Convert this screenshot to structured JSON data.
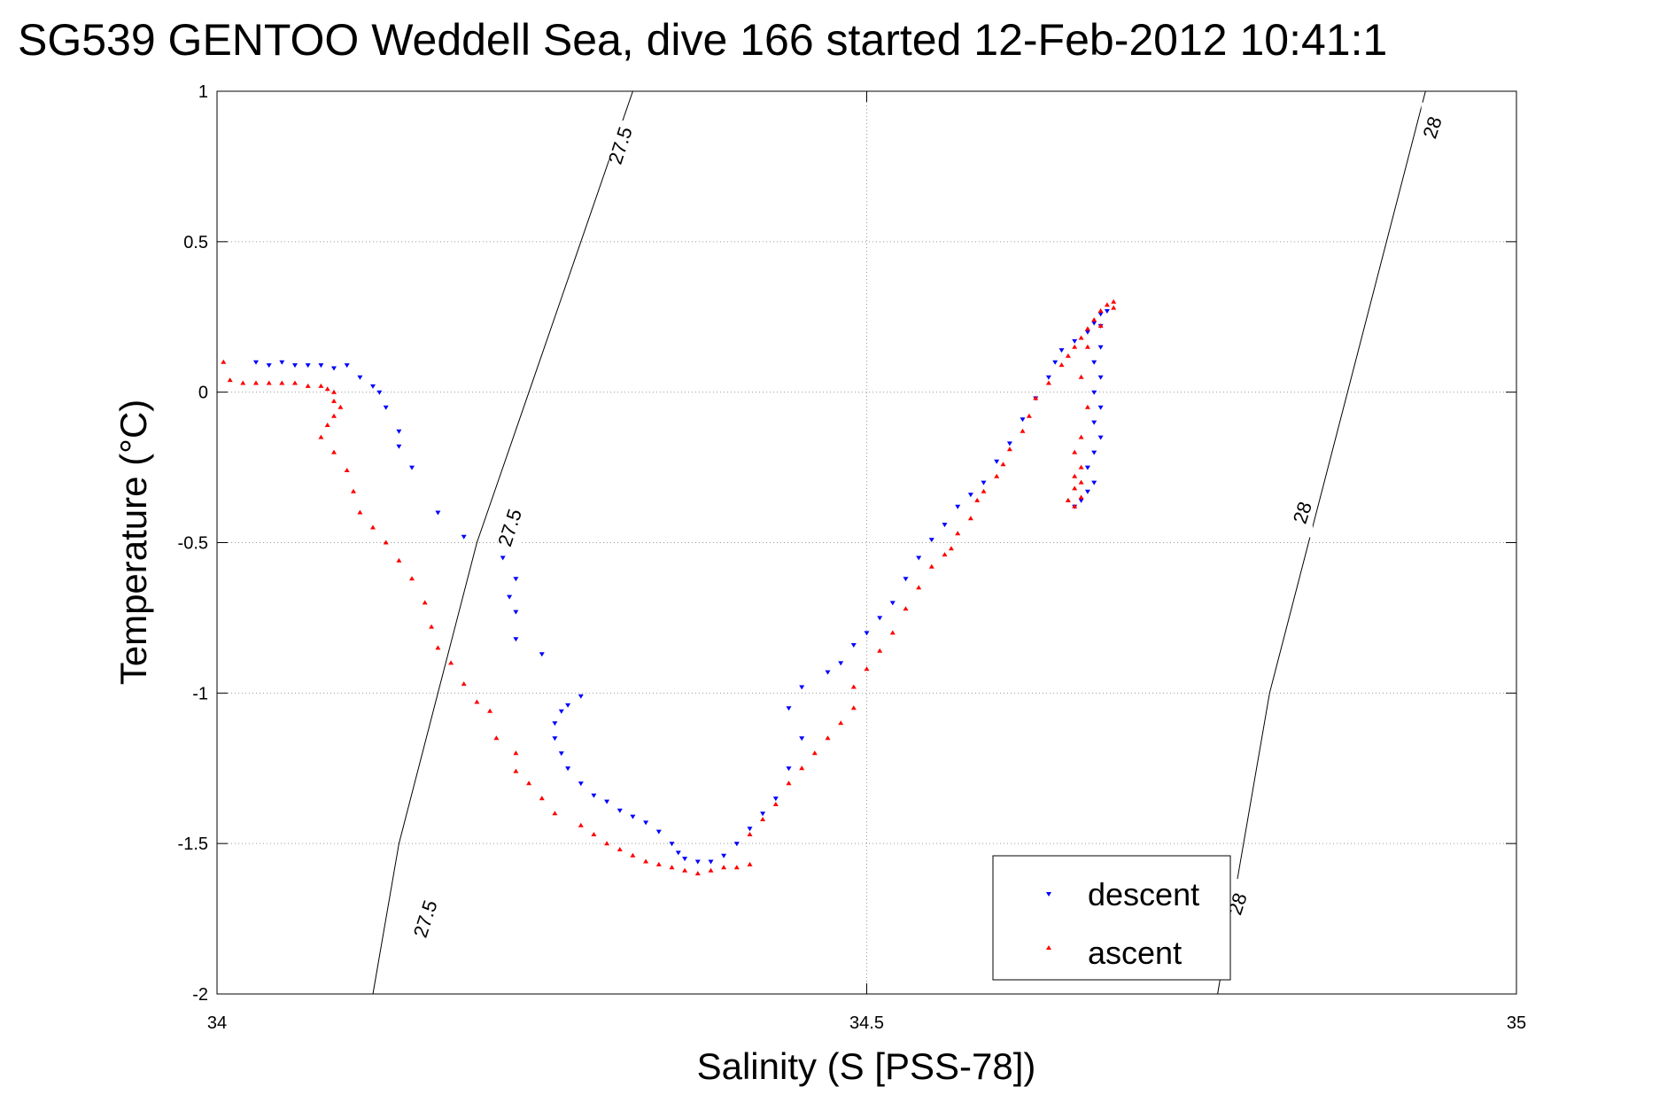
{
  "chart_data": {
    "type": "scatter",
    "title": "SG539 GENTOO Weddell Sea, dive 166 started 12-Feb-2012 10:41:1",
    "xlabel": "Salinity (S [PSS-78])",
    "ylabel": "Temperature (°C)",
    "xlim": [
      34,
      35
    ],
    "ylim": [
      -2,
      1
    ],
    "xticks": [
      34,
      34.5,
      35
    ],
    "yticks": [
      -2,
      -1.5,
      -1,
      -0.5,
      0,
      0.5,
      1
    ],
    "x_tick_labels": [
      "34",
      "34.5",
      "35"
    ],
    "y_tick_labels": [
      "-2",
      "-1.5",
      "-1",
      "-0.5",
      "0",
      "0.5",
      "1"
    ],
    "grid": true,
    "legend_position": "bottom-right",
    "series": [
      {
        "name": "descent",
        "color": "#0000ff",
        "marker": "triangle-down",
        "points": [
          [
            34.03,
            0.1
          ],
          [
            34.04,
            0.09
          ],
          [
            34.05,
            0.1
          ],
          [
            34.06,
            0.09
          ],
          [
            34.07,
            0.09
          ],
          [
            34.08,
            0.09
          ],
          [
            34.09,
            0.08
          ],
          [
            34.1,
            0.09
          ],
          [
            34.11,
            0.05
          ],
          [
            34.12,
            0.02
          ],
          [
            34.125,
            0.0
          ],
          [
            34.13,
            -0.05
          ],
          [
            34.14,
            -0.13
          ],
          [
            34.14,
            -0.18
          ],
          [
            34.15,
            -0.25
          ],
          [
            34.17,
            -0.4
          ],
          [
            34.19,
            -0.48
          ],
          [
            34.22,
            -0.55
          ],
          [
            34.23,
            -0.62
          ],
          [
            34.225,
            -0.68
          ],
          [
            34.23,
            -0.73
          ],
          [
            34.23,
            -0.82
          ],
          [
            34.25,
            -0.87
          ],
          [
            34.28,
            -1.01
          ],
          [
            34.27,
            -1.04
          ],
          [
            34.265,
            -1.06
          ],
          [
            34.26,
            -1.1
          ],
          [
            34.26,
            -1.15
          ],
          [
            34.265,
            -1.2
          ],
          [
            34.27,
            -1.25
          ],
          [
            34.28,
            -1.3
          ],
          [
            34.29,
            -1.34
          ],
          [
            34.3,
            -1.36
          ],
          [
            34.31,
            -1.39
          ],
          [
            34.32,
            -1.41
          ],
          [
            34.33,
            -1.43
          ],
          [
            34.34,
            -1.46
          ],
          [
            34.35,
            -1.5
          ],
          [
            34.355,
            -1.53
          ],
          [
            34.36,
            -1.55
          ],
          [
            34.37,
            -1.56
          ],
          [
            34.38,
            -1.56
          ],
          [
            34.39,
            -1.54
          ],
          [
            34.4,
            -1.5
          ],
          [
            34.41,
            -1.45
          ],
          [
            34.42,
            -1.4
          ],
          [
            34.43,
            -1.35
          ],
          [
            34.44,
            -1.25
          ],
          [
            34.45,
            -1.15
          ],
          [
            34.44,
            -1.05
          ],
          [
            34.45,
            -0.98
          ],
          [
            34.47,
            -0.93
          ],
          [
            34.48,
            -0.9
          ],
          [
            34.49,
            -0.84
          ],
          [
            34.5,
            -0.8
          ],
          [
            34.51,
            -0.75
          ],
          [
            34.52,
            -0.7
          ],
          [
            34.53,
            -0.62
          ],
          [
            34.54,
            -0.55
          ],
          [
            34.55,
            -0.49
          ],
          [
            34.56,
            -0.44
          ],
          [
            34.57,
            -0.38
          ],
          [
            34.58,
            -0.34
          ],
          [
            34.59,
            -0.3
          ],
          [
            34.6,
            -0.23
          ],
          [
            34.61,
            -0.17
          ],
          [
            34.62,
            -0.09
          ],
          [
            34.63,
            -0.02
          ],
          [
            34.64,
            0.05
          ],
          [
            34.645,
            0.1
          ],
          [
            34.65,
            0.14
          ],
          [
            34.66,
            0.17
          ],
          [
            34.67,
            0.2
          ],
          [
            34.675,
            0.23
          ],
          [
            34.68,
            0.26
          ],
          [
            34.685,
            0.27
          ],
          [
            34.68,
            0.22
          ],
          [
            34.68,
            0.15
          ],
          [
            34.675,
            0.1
          ],
          [
            34.68,
            0.05
          ],
          [
            34.675,
            0.0
          ],
          [
            34.68,
            -0.05
          ],
          [
            34.675,
            -0.1
          ],
          [
            34.68,
            -0.15
          ],
          [
            34.675,
            -0.2
          ],
          [
            34.67,
            -0.25
          ],
          [
            34.675,
            -0.3
          ],
          [
            34.67,
            -0.33
          ],
          [
            34.665,
            -0.36
          ],
          [
            34.66,
            -0.38
          ]
        ]
      },
      {
        "name": "ascent",
        "color": "#ff0000",
        "marker": "triangle-up",
        "points": [
          [
            34.005,
            0.1
          ],
          [
            34.01,
            0.04
          ],
          [
            34.02,
            0.03
          ],
          [
            34.03,
            0.03
          ],
          [
            34.04,
            0.03
          ],
          [
            34.05,
            0.03
          ],
          [
            34.06,
            0.03
          ],
          [
            34.07,
            0.02
          ],
          [
            34.08,
            0.02
          ],
          [
            34.085,
            0.01
          ],
          [
            34.09,
            0.0
          ],
          [
            34.09,
            -0.03
          ],
          [
            34.095,
            -0.05
          ],
          [
            34.09,
            -0.08
          ],
          [
            34.085,
            -0.11
          ],
          [
            34.08,
            -0.15
          ],
          [
            34.09,
            -0.2
          ],
          [
            34.1,
            -0.26
          ],
          [
            34.105,
            -0.33
          ],
          [
            34.11,
            -0.4
          ],
          [
            34.12,
            -0.45
          ],
          [
            34.13,
            -0.5
          ],
          [
            34.14,
            -0.56
          ],
          [
            34.15,
            -0.62
          ],
          [
            34.16,
            -0.7
          ],
          [
            34.165,
            -0.78
          ],
          [
            34.17,
            -0.85
          ],
          [
            34.18,
            -0.9
          ],
          [
            34.19,
            -0.97
          ],
          [
            34.2,
            -1.03
          ],
          [
            34.21,
            -1.06
          ],
          [
            34.215,
            -1.15
          ],
          [
            34.23,
            -1.2
          ],
          [
            34.23,
            -1.26
          ],
          [
            34.24,
            -1.3
          ],
          [
            34.25,
            -1.35
          ],
          [
            34.26,
            -1.4
          ],
          [
            34.28,
            -1.44
          ],
          [
            34.29,
            -1.47
          ],
          [
            34.3,
            -1.5
          ],
          [
            34.31,
            -1.52
          ],
          [
            34.32,
            -1.54
          ],
          [
            34.33,
            -1.56
          ],
          [
            34.34,
            -1.57
          ],
          [
            34.35,
            -1.58
          ],
          [
            34.36,
            -1.59
          ],
          [
            34.37,
            -1.6
          ],
          [
            34.38,
            -1.59
          ],
          [
            34.39,
            -1.58
          ],
          [
            34.4,
            -1.58
          ],
          [
            34.41,
            -1.57
          ],
          [
            34.41,
            -1.47
          ],
          [
            34.42,
            -1.42
          ],
          [
            34.43,
            -1.37
          ],
          [
            34.44,
            -1.3
          ],
          [
            34.45,
            -1.25
          ],
          [
            34.46,
            -1.2
          ],
          [
            34.47,
            -1.15
          ],
          [
            34.48,
            -1.1
          ],
          [
            34.49,
            -1.05
          ],
          [
            34.49,
            -0.98
          ],
          [
            34.5,
            -0.92
          ],
          [
            34.51,
            -0.86
          ],
          [
            34.52,
            -0.8
          ],
          [
            34.53,
            -0.72
          ],
          [
            34.54,
            -0.65
          ],
          [
            34.55,
            -0.58
          ],
          [
            34.56,
            -0.54
          ],
          [
            34.565,
            -0.52
          ],
          [
            34.57,
            -0.47
          ],
          [
            34.58,
            -0.42
          ],
          [
            34.585,
            -0.36
          ],
          [
            34.59,
            -0.33
          ],
          [
            34.6,
            -0.28
          ],
          [
            34.605,
            -0.24
          ],
          [
            34.61,
            -0.19
          ],
          [
            34.62,
            -0.13
          ],
          [
            34.625,
            -0.08
          ],
          [
            34.63,
            -0.02
          ],
          [
            34.64,
            0.03
          ],
          [
            34.65,
            0.09
          ],
          [
            34.655,
            0.12
          ],
          [
            34.66,
            0.15
          ],
          [
            34.665,
            0.18
          ],
          [
            34.67,
            0.21
          ],
          [
            34.675,
            0.24
          ],
          [
            34.68,
            0.27
          ],
          [
            34.685,
            0.29
          ],
          [
            34.69,
            0.3
          ],
          [
            34.69,
            0.28
          ],
          [
            34.68,
            0.22
          ],
          [
            34.67,
            0.15
          ],
          [
            34.665,
            0.05
          ],
          [
            34.67,
            -0.05
          ],
          [
            34.665,
            -0.15
          ],
          [
            34.66,
            -0.2
          ],
          [
            34.665,
            -0.25
          ],
          [
            34.66,
            -0.28
          ],
          [
            34.665,
            -0.3
          ],
          [
            34.66,
            -0.32
          ],
          [
            34.665,
            -0.35
          ],
          [
            34.655,
            -0.36
          ],
          [
            34.66,
            -0.38
          ]
        ]
      }
    ],
    "contours": [
      {
        "label": "27.5",
        "points": [
          [
            34.32,
            1.0
          ],
          [
            34.28,
            0.5
          ],
          [
            34.24,
            0.0
          ],
          [
            34.2,
            -0.5
          ],
          [
            34.17,
            -1.0
          ],
          [
            34.14,
            -1.5
          ],
          [
            34.12,
            -2.0
          ]
        ],
        "label_positions": [
          [
            34.31,
            0.82
          ],
          [
            34.225,
            -0.45
          ],
          [
            34.16,
            -1.75
          ]
        ]
      },
      {
        "label": "28",
        "points": [
          [
            34.93,
            1.0
          ],
          [
            34.9,
            0.5
          ],
          [
            34.87,
            0.0
          ],
          [
            34.84,
            -0.5
          ],
          [
            34.81,
            -1.0
          ],
          [
            34.79,
            -1.5
          ],
          [
            34.77,
            -2.0
          ]
        ],
        "label_positions": [
          [
            34.935,
            0.88
          ],
          [
            34.835,
            -0.4
          ],
          [
            34.785,
            -1.7
          ]
        ]
      }
    ]
  }
}
